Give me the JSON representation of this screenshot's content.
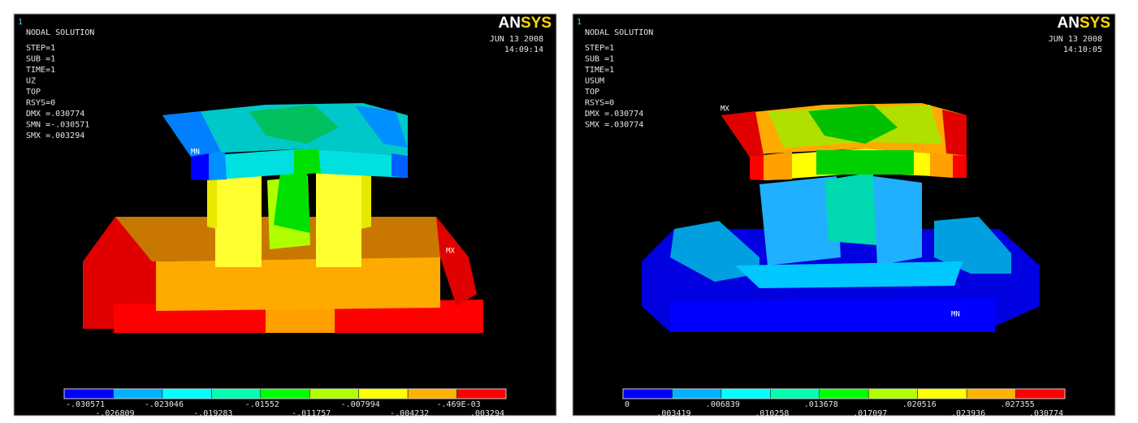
{
  "panels": [
    {
      "corner": "1",
      "logo": [
        "AN",
        "SYS"
      ],
      "title": "NODAL SOLUTION",
      "info": [
        "STEP=1",
        "SUB =1",
        "TIME=1",
        "UZ",
        "TOP",
        "RSYS=0",
        "DMX =.030774",
        "SMN =-.030571",
        "SMX =.003294"
      ],
      "date": "JUN 13 2008",
      "time": "14:09:14",
      "markers": [
        "MN",
        "MX"
      ],
      "legend": [
        "-.030571",
        "-.026809",
        "-.023046",
        "-.019283",
        "-.01552",
        "-.011757",
        "-.007994",
        "-.004232",
        "-.469E-03",
        ".003294"
      ]
    },
    {
      "corner": "1",
      "logo": [
        "AN",
        "SYS"
      ],
      "title": "NODAL SOLUTION",
      "info": [
        "STEP=1",
        "SUB =1",
        "TIME=1",
        "USUM",
        "TOP",
        "RSYS=0",
        "DMX =.030774",
        "SMX =.030774"
      ],
      "date": "JUN 13 2008",
      "time": "14:10:05",
      "markers": [
        "MX",
        "MN"
      ],
      "legend": [
        "0",
        ".003419",
        ".006839",
        ".010258",
        ".013678",
        ".017097",
        ".020516",
        ".023936",
        ".027355",
        ".030774"
      ]
    }
  ]
}
